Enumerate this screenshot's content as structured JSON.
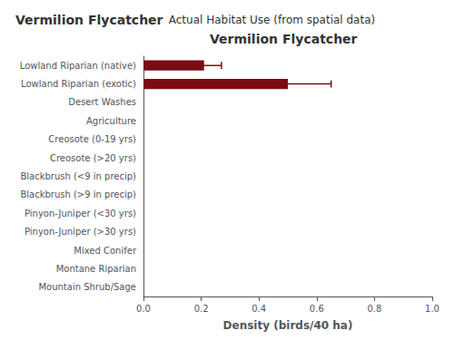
{
  "chart_data": {
    "type": "bar",
    "orientation": "horizontal",
    "title": "Vermilion Flycatcher",
    "subtitle": "Actual Habitat Use (from spatial data)",
    "annotations": [
      "Vermilion Flycatcher"
    ],
    "xlabel": "Density (birds/40 ha)",
    "categories": [
      "Lowland Riparian (native)",
      "Lowland Riparian (exotic)",
      "Desert Washes",
      "Agriculture",
      "Creosote (0-19 yrs)",
      "Creosote (>20 yrs)",
      "Blackbrush (<9 in precip)",
      "Blackbrush (>9 in precip)",
      "Pinyon-Juniper (<30 yrs)",
      "Pinyon-Juniper (>30 yrs)",
      "Mixed Conifer",
      "Montane Riparian",
      "Mountain Shrub/Sage"
    ],
    "values": [
      0.21,
      0.5,
      0.0,
      0.0,
      0.0,
      0.0,
      0.0,
      0.0,
      0.0,
      0.0,
      0.0,
      0.0,
      0.0
    ],
    "errors": [
      0.06,
      0.15,
      0.0,
      0.0,
      0.0,
      0.0,
      0.0,
      0.0,
      0.0,
      0.0,
      0.0,
      0.0,
      0.0
    ],
    "color": "#7B0C14",
    "xlim": [
      0.0,
      1.0
    ],
    "xticks": [
      {
        "value": 0.0,
        "label": "0.0"
      },
      0.2,
      0.4,
      0.6,
      0.8,
      {
        "value": 1.0,
        "label": "1.0"
      }
    ],
    "grid": false
  }
}
